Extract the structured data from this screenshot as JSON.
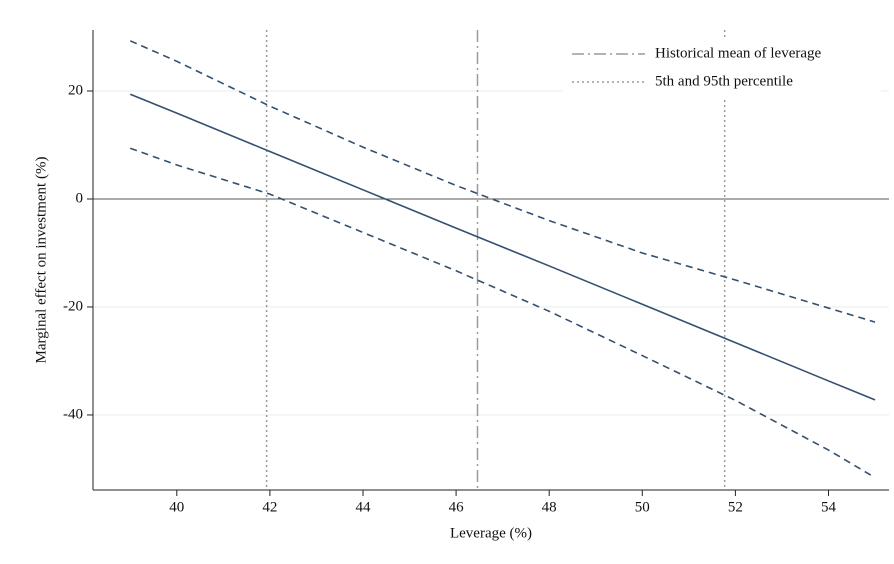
{
  "chart_data": {
    "type": "line",
    "x_label": "Leverage (%)",
    "y_label": "Marginal effect on investment (%)",
    "x": [
      39,
      40,
      42,
      44,
      46,
      48,
      50,
      52,
      54,
      55
    ],
    "series": [
      {
        "color": "#34506f",
        "style": "dashed",
        "values": [
          29.3,
          25.5,
          17.2,
          9.6,
          2.5,
          -4,
          -10,
          -15,
          -20.2,
          -22.8
        ]
      },
      {
        "color": "#34506f",
        "style": "solid",
        "values": [
          19.4,
          15.9,
          8.8,
          1.7,
          -5.4,
          -12.4,
          -19.5,
          -26.6,
          -33.7,
          -37.2
        ]
      },
      {
        "color": "#34506f",
        "style": "dashed",
        "values": [
          9.4,
          6.3,
          0.9,
          -6.2,
          -13.3,
          -20.8,
          -29,
          -37.3,
          -46.5,
          -51.6
        ]
      }
    ],
    "vlines": [
      {
        "name": "Historical mean of leverage",
        "style": "dashdot",
        "color": "#9a9a9a",
        "values": [
          46.46
        ]
      },
      {
        "name": "5th and 95th percentile",
        "style": "dotted",
        "color": "#9a9a9a",
        "values": [
          41.93,
          51.77
        ]
      }
    ],
    "hline": 0,
    "xlim": [
      38.2,
      55.3
    ],
    "ylim": [
      -53.9,
      31.3
    ],
    "xticks": [
      40,
      42,
      44,
      46,
      48,
      50,
      52,
      54
    ],
    "yticks": [
      20,
      0,
      -20,
      -40
    ],
    "grid": true,
    "legend": "top-right"
  }
}
